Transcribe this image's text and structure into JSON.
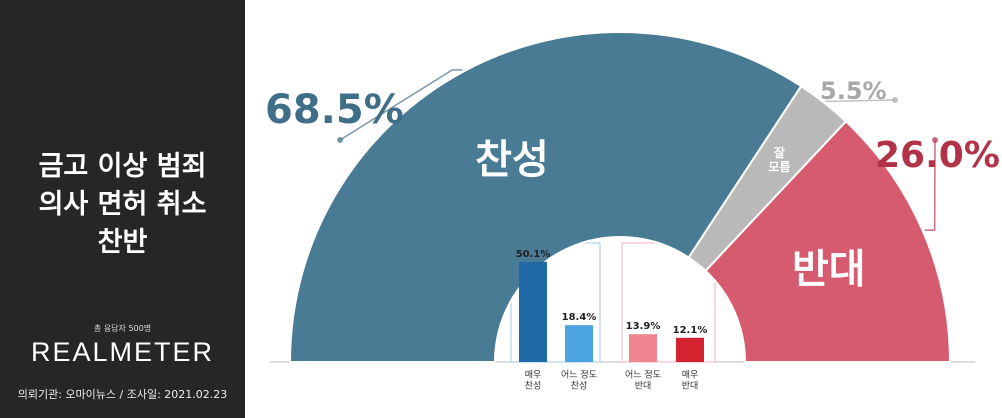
{
  "chart_data": [
    {
      "type": "pie",
      "title": "금고 이상 범죄\n의사 면허 취소\n찬반",
      "note": "총 응답자 500명",
      "brand": "REALMETER",
      "source": "의뢰기관: 오마이뉴스  /  조사일: 2021.02.23",
      "categories": [
        "찬성",
        "잘\n모름",
        "반대"
      ],
      "values": [
        68.5,
        5.5,
        26.0
      ],
      "value_labels": [
        "68.5%",
        "5.5%",
        "26.0%"
      ],
      "colors": [
        "#4a7b94",
        "#b9b9b9",
        "#d65b6f"
      ],
      "label_colors": [
        "#3f6e88",
        "#a8a8a8",
        "#b23248"
      ]
    },
    {
      "type": "bar",
      "categories": [
        "매우\n찬성",
        "어느 정도\n찬성",
        "어느 정도\n반대",
        "매우\n반대"
      ],
      "values": [
        50.1,
        18.4,
        13.9,
        12.1
      ],
      "value_labels": [
        "50.1%",
        "18.4%",
        "13.9%",
        "12.1%"
      ],
      "colors": [
        "#1f6aa6",
        "#4ba4e0",
        "#f0858f",
        "#d42231"
      ]
    }
  ]
}
